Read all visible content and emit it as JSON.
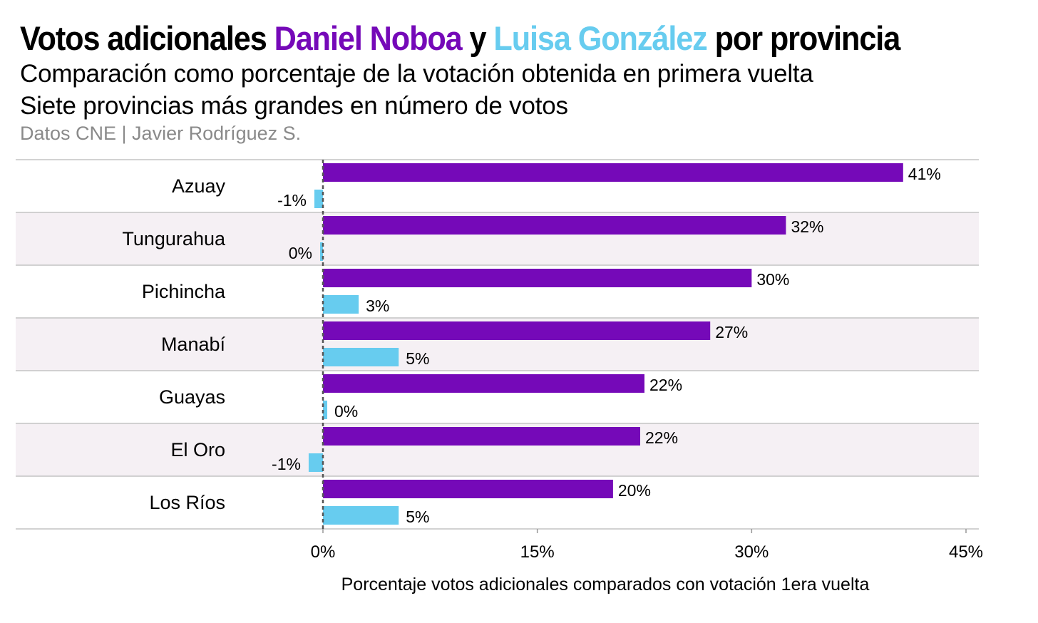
{
  "header": {
    "title_part1": "Votos adicionales ",
    "title_noboa": "Daniel Noboa",
    "title_y": " y ",
    "title_gonzalez": "Luisa González",
    "title_part2": " por provincia",
    "subtitle_line1": "Comparación como porcentaje de la votación obtenida en primera vuelta",
    "subtitle_line2": "Siete provincias más grandes en número de votos",
    "source": "Datos CNE | Javier Rodríguez S."
  },
  "colors": {
    "noboa": "#7509b8",
    "gonzalez": "#67ccef",
    "band": "#f5f0f4",
    "rule": "#c4c4c4",
    "zero_line": "#555555"
  },
  "chart_data": {
    "type": "bar",
    "orientation": "horizontal",
    "title": "Votos adicionales Daniel Noboa y Luisa González por provincia",
    "categories": [
      "Azuay",
      "Tungurahua",
      "Pichincha",
      "Manabí",
      "Guayas",
      "El Oro",
      "Los Ríos"
    ],
    "series": [
      {
        "name": "Daniel Noboa",
        "values": [
          40.6,
          32.4,
          30.0,
          27.1,
          22.5,
          22.2,
          20.3
        ],
        "labels": [
          "41%",
          "32%",
          "30%",
          "27%",
          "22%",
          "22%",
          "20%"
        ]
      },
      {
        "name": "Luisa González",
        "values": [
          -0.6,
          -0.2,
          2.5,
          5.3,
          0.3,
          -1.0,
          5.3
        ],
        "labels": [
          "-1%",
          "0%",
          "3%",
          "5%",
          "0%",
          "-1%",
          "5%"
        ]
      }
    ],
    "xlabel": "Porcentaje votos adicionales comparados con votación 1era vuelta",
    "ylabel": "",
    "xlim": [
      0,
      45
    ],
    "xticks": [
      0,
      15,
      30,
      45
    ],
    "xtick_labels": [
      "0%",
      "15%",
      "30%",
      "45%"
    ]
  }
}
